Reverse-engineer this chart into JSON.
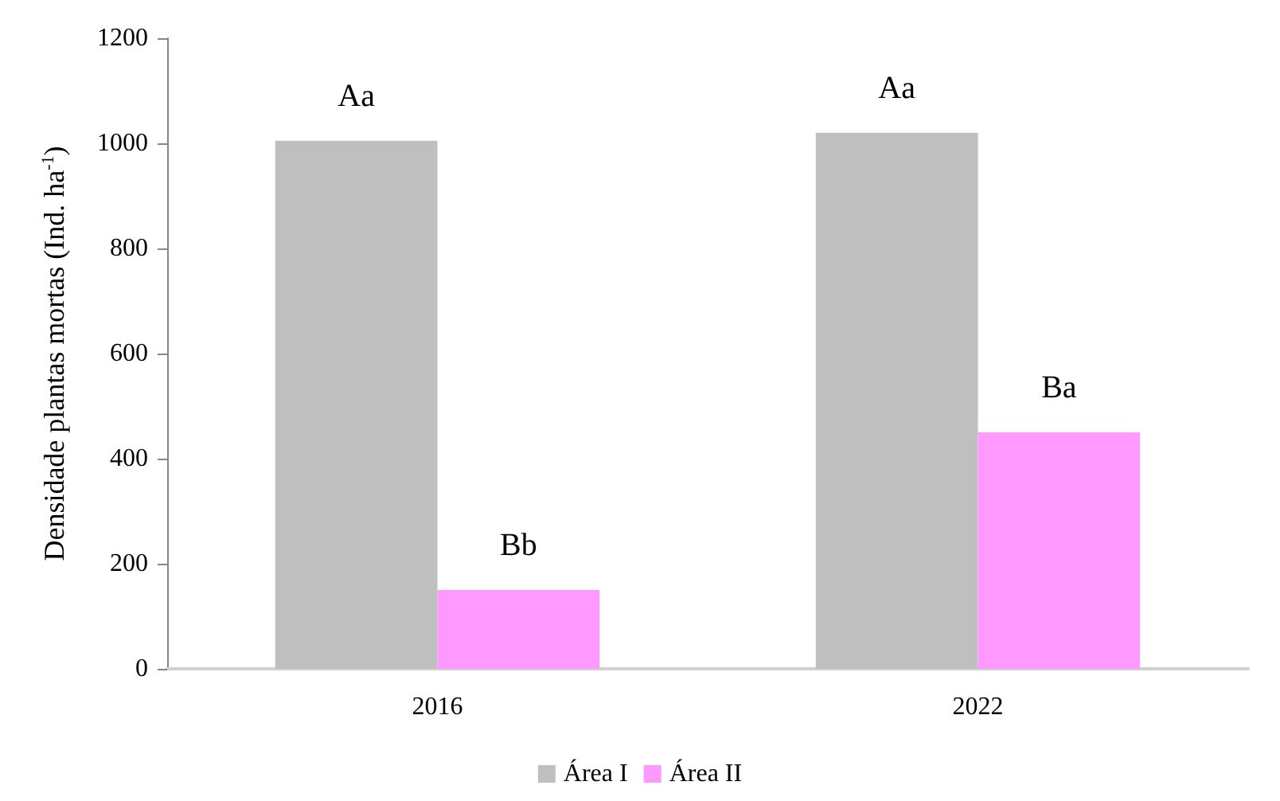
{
  "chart_data": {
    "type": "bar",
    "ylabel": "Densidade plantas mortas (Ind. ha$^{-1}$)",
    "categories": [
      "2016",
      "2022"
    ],
    "series": [
      {
        "name": "Área I",
        "color": "#bfbfbf",
        "values": [
          1005,
          1020
        ],
        "value_labels": [
          "Aa",
          "Aa"
        ]
      },
      {
        "name": "Área II",
        "color": "#ff99ff",
        "values": [
          150,
          450
        ],
        "value_labels": [
          "Bb",
          "Ba"
        ]
      }
    ],
    "ylim": [
      0,
      1200
    ],
    "yticks": [
      0,
      200,
      400,
      600,
      800,
      1000,
      1200
    ],
    "grid": false,
    "legend": "bottom"
  }
}
